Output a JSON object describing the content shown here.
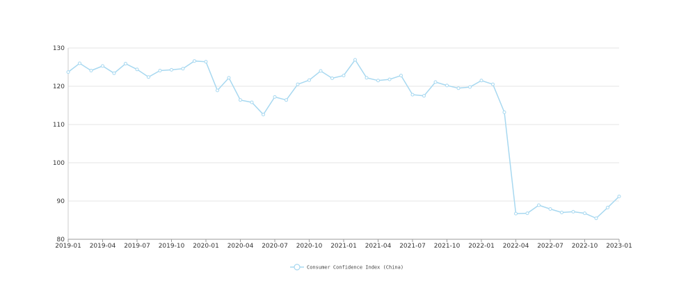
{
  "chart_data": {
    "type": "line",
    "title": "",
    "xlabel": "",
    "ylabel": "",
    "ylim": [
      80,
      130
    ],
    "y_ticks": [
      80,
      90,
      100,
      110,
      120,
      130
    ],
    "x_range": [
      "2019-01",
      "2023-01"
    ],
    "x_ticks": [
      "2019-01",
      "2019-04",
      "2019-07",
      "2019-10",
      "2020-01",
      "2020-04",
      "2020-07",
      "2020-10",
      "2021-01",
      "2021-04",
      "2021-07",
      "2021-10",
      "2022-01",
      "2022-04",
      "2022-07",
      "2022-10",
      "2023-01"
    ],
    "grid": "horizontal",
    "legend_position": "bottom-center",
    "series": [
      {
        "name": "Consumer Confidence Index (China)",
        "color": "#a7d8f0",
        "x": [
          "2019-01",
          "2019-02",
          "2019-03",
          "2019-04",
          "2019-05",
          "2019-06",
          "2019-07",
          "2019-08",
          "2019-09",
          "2019-10",
          "2019-11",
          "2019-12",
          "2020-01",
          "2020-02",
          "2020-03",
          "2020-04",
          "2020-05",
          "2020-06",
          "2020-07",
          "2020-08",
          "2020-09",
          "2020-10",
          "2020-11",
          "2020-12",
          "2021-01",
          "2021-02",
          "2021-03",
          "2021-04",
          "2021-05",
          "2021-06",
          "2021-07",
          "2021-08",
          "2021-09",
          "2021-10",
          "2021-11",
          "2021-12",
          "2022-01",
          "2022-02",
          "2022-03",
          "2022-04",
          "2022-05",
          "2022-06",
          "2022-07",
          "2022-08",
          "2022-09",
          "2022-10",
          "2022-11",
          "2022-12",
          "2023-01"
        ],
        "values": [
          123.7,
          126.0,
          124.1,
          125.3,
          123.4,
          125.9,
          124.4,
          122.4,
          124.1,
          124.3,
          124.6,
          126.6,
          126.4,
          118.9,
          122.2,
          116.4,
          115.8,
          112.6,
          117.2,
          116.4,
          120.5,
          121.6,
          124.0,
          122.1,
          122.8,
          126.9,
          122.2,
          121.5,
          121.8,
          122.8,
          117.8,
          117.5,
          121.1,
          120.2,
          119.5,
          119.8,
          121.5,
          120.5,
          113.2,
          86.7,
          86.8,
          88.9,
          87.9,
          87.0,
          87.2,
          86.8,
          85.5,
          88.3,
          91.2
        ]
      }
    ]
  }
}
